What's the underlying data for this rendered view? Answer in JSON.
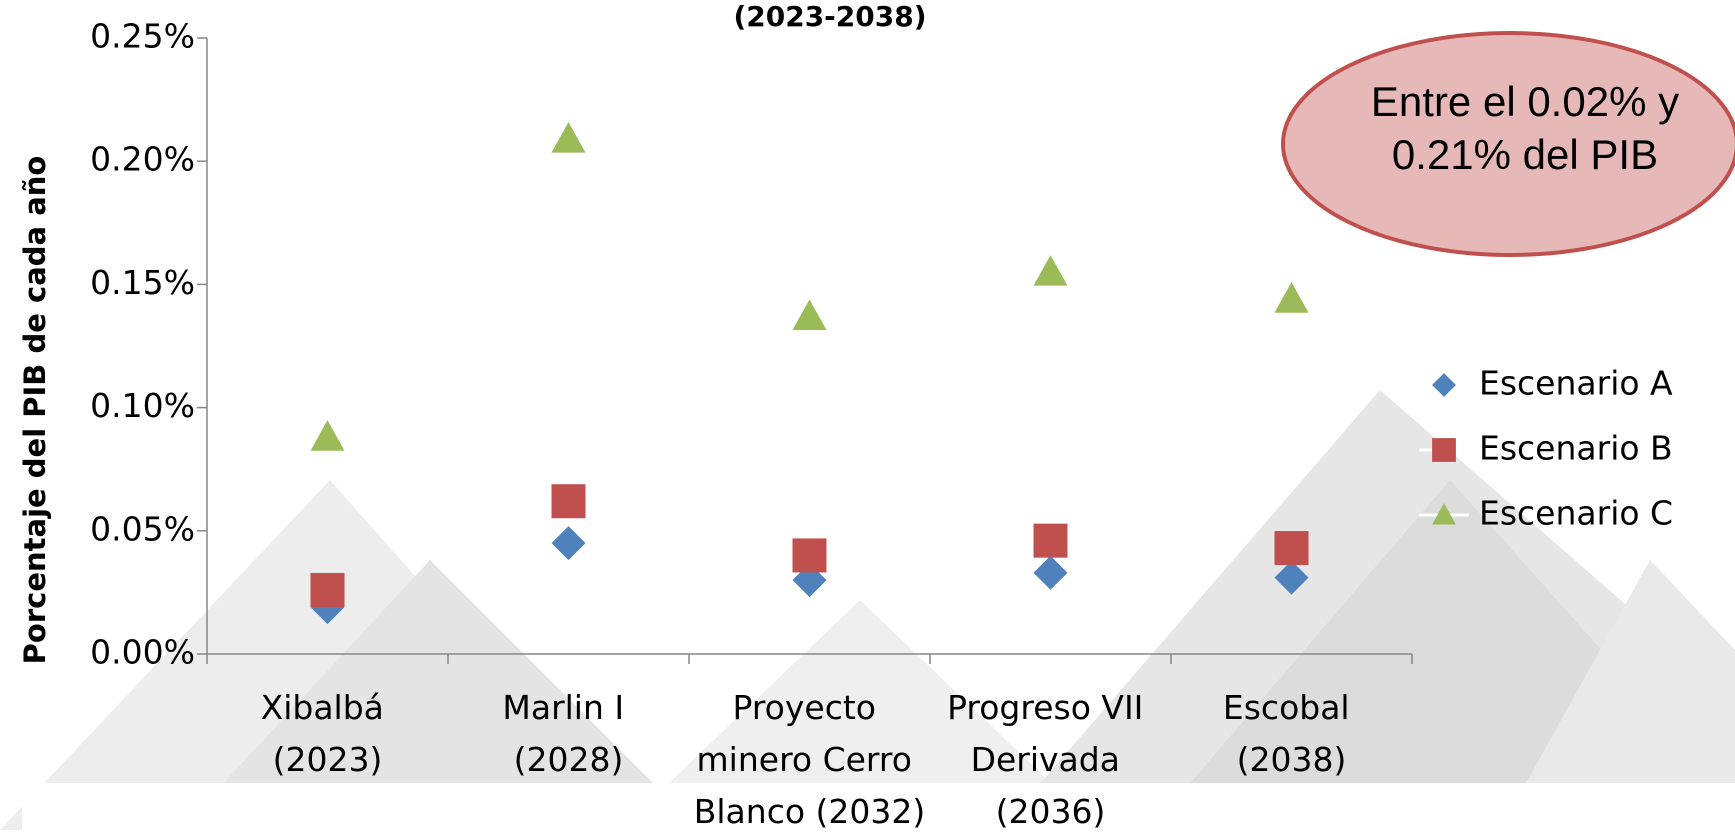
{
  "chart_data": {
    "type": "scatter",
    "title": "(2023-2038)",
    "y_label": "Porcentaje del PIB de cada año",
    "categories": [
      "Xibalbá (2023)",
      "Marlin I (2028)",
      "Proyecto minero Cerro Blanco (2032)",
      "Progreso VII Derivada (2036)",
      "Escobal (2038)"
    ],
    "series": [
      {
        "name": "Escenario A",
        "color": "#4f81bd",
        "marker": "diamond",
        "values": [
          0.019,
          0.045,
          0.03,
          0.033,
          0.031
        ]
      },
      {
        "name": "Escenario B",
        "color": "#c0504d",
        "marker": "square",
        "values": [
          0.026,
          0.062,
          0.04,
          0.046,
          0.043
        ]
      },
      {
        "name": "Escenario C",
        "color": "#9bbb59",
        "marker": "triangle",
        "values": [
          0.088,
          0.209,
          0.137,
          0.155,
          0.144
        ]
      }
    ],
    "ylim": [
      0,
      0.25
    ],
    "yticks": [
      {
        "value": 0,
        "label": "0.00%"
      },
      {
        "value": 0.05,
        "label": "0.05%"
      },
      {
        "value": 0.1,
        "label": "0.10%"
      },
      {
        "value": 0.15,
        "label": "0.15%"
      },
      {
        "value": 0.2,
        "label": "0.20%"
      },
      {
        "value": 0.25,
        "label": "0.25%"
      }
    ],
    "legend": "right",
    "annotation_lines": [
      "Entre el 0.02% y",
      "0.21% del PIB"
    ]
  }
}
